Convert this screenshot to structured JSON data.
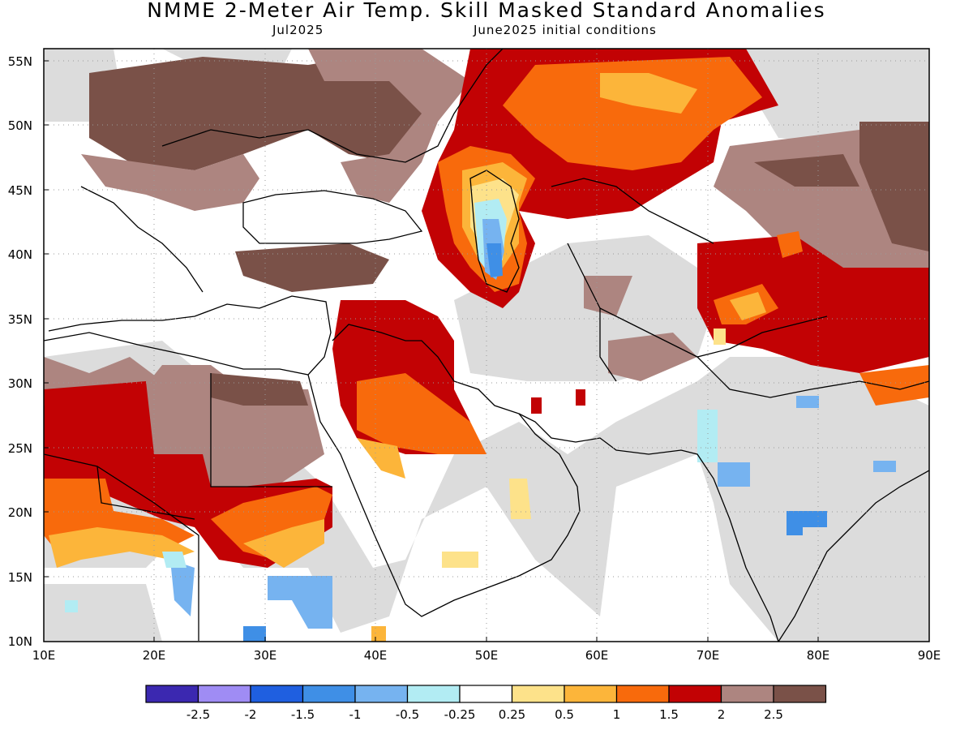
{
  "header": {
    "title": "NMME 2-Meter Air Temp. Skill Masked Standard Anomalies",
    "month": "Jul2025",
    "init": "June2025 initial conditions"
  },
  "axes": {
    "lat_labels": [
      "55N",
      "50N",
      "45N",
      "40N",
      "35N",
      "30N",
      "25N",
      "20N",
      "15N",
      "10N"
    ],
    "lon_labels": [
      "10E",
      "20E",
      "30E",
      "40E",
      "50E",
      "60E",
      "70E",
      "80E",
      "90E"
    ]
  },
  "colorbar": {
    "colors": [
      "#3b28b0",
      "#9f8cf4",
      "#1f5fe0",
      "#3f8fe6",
      "#76b3f0",
      "#b2ecf3",
      "#ffffff",
      "#fde28a",
      "#fcb53a",
      "#f86a0c",
      "#c20204",
      "#ad8580",
      "#7a5148"
    ],
    "labels": [
      "-2.5",
      "-2",
      "-1.5",
      "-1",
      "-0.5",
      "-0.25",
      "0.25",
      "0.5",
      "1",
      "1.5",
      "2",
      "2.5"
    ]
  },
  "palette": {
    "gray": "#dcdcdc",
    "brown_light": "#ad8580",
    "brown_dark": "#7a5148",
    "red": "#c20204",
    "orange": "#f86a0c",
    "lightorange": "#fcb53a",
    "yellow": "#fde28a",
    "blue_light": "#76b3f0",
    "blue": "#3f8fe6",
    "cyan": "#b2ecf3"
  },
  "map": {
    "lon_range": [
      10,
      90
    ],
    "lat_range": [
      10,
      56
    ],
    "grid": "dotted"
  }
}
